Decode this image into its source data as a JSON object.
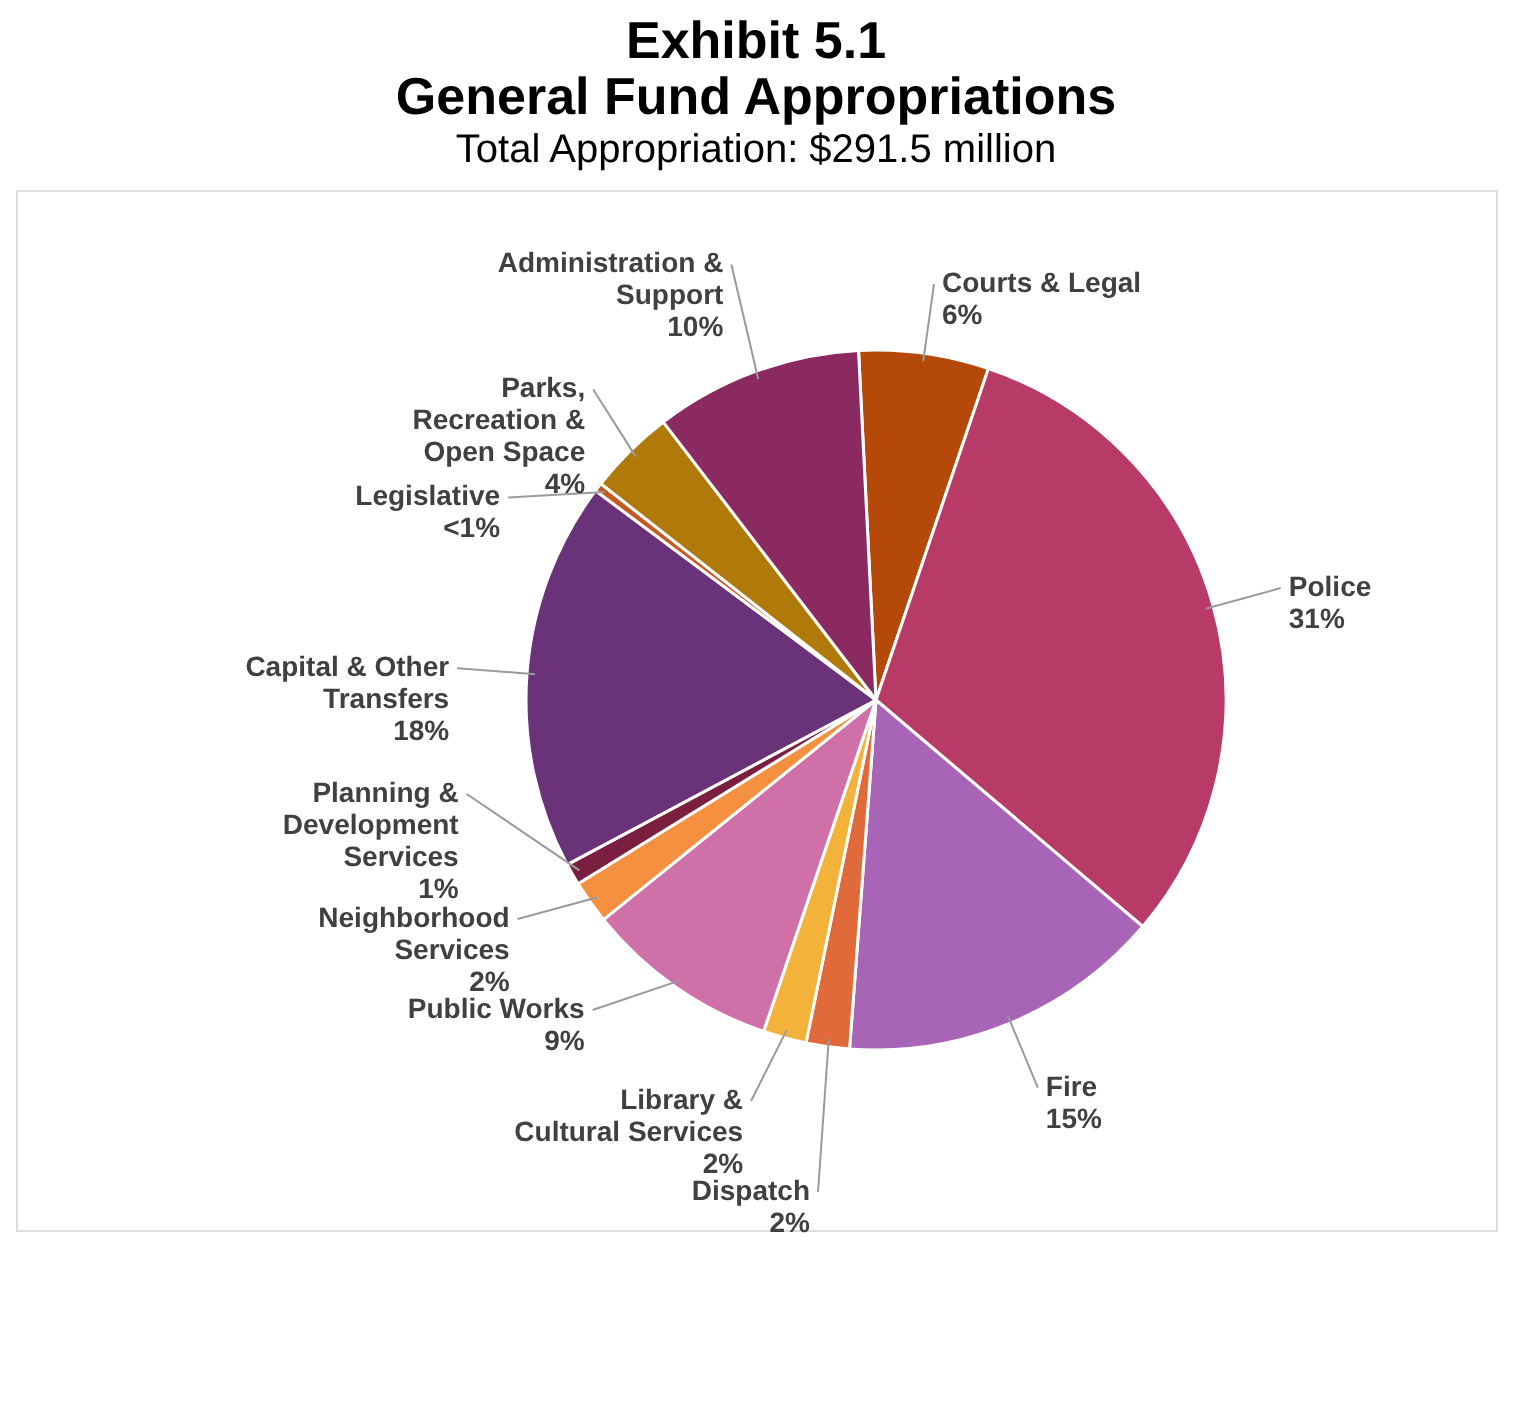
{
  "chart_data": {
    "type": "pie",
    "title": "Exhibit 5.1\nGeneral Fund Appropriations",
    "subtitle": "Total Appropriation: $291.5 million",
    "categories": [
      "Courts & Legal",
      "Police",
      "Fire",
      "Dispatch",
      "Library &\nCultural Services",
      "Public Works",
      "Neighborhood\nServices",
      "Planning &\nDevelopment\nServices",
      "Capital & Other\nTransfers",
      "Legislative",
      "Parks,\nRecreation &\nOpen Space",
      "Administration &\nSupport"
    ],
    "values": [
      6,
      31,
      15,
      2,
      2,
      9,
      2,
      1,
      18,
      0.4,
      4,
      9.6
    ],
    "value_labels": [
      "6%",
      "31%",
      "15%",
      "2%",
      "2%",
      "9%",
      "2%",
      "1%",
      "18%",
      "<1%",
      "4%",
      "10%"
    ],
    "colors": [
      "#b5490a",
      "#b83a66",
      "#a865b8",
      "#e06a3a",
      "#f3b23a",
      "#d070a8",
      "#f59040",
      "#7a1f3f",
      "#6a3278",
      "#c55a20",
      "#b07a0a",
      "#8a2a60"
    ],
    "legend": false
  }
}
